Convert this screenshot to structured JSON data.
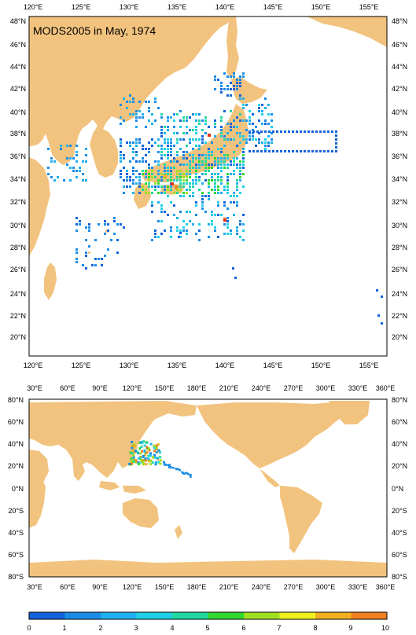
{
  "top_map": {
    "title": "MODS2005 in May, 1974",
    "lon_labels": [
      "120°E",
      "125°E",
      "130°E",
      "135°E",
      "140°E",
      "145°E",
      "150°E",
      "155°E"
    ],
    "lat_labels": [
      "20°N",
      "22°N",
      "24°N",
      "26°N",
      "28°N",
      "30°N",
      "32°N",
      "34°N",
      "36°N",
      "38°N",
      "40°N",
      "42°N",
      "44°N",
      "46°N",
      "48°N"
    ]
  },
  "bottom_map": {
    "lon_labels": [
      "30°E",
      "60°E",
      "90°E",
      "120°E",
      "150°E",
      "180°E",
      "210°E",
      "240°E",
      "270°E",
      "300°E",
      "330°E",
      "360°E"
    ],
    "lat_labels": [
      "80°S",
      "60°S",
      "40°S",
      "20°S",
      "0°N",
      "20°N",
      "40°N",
      "60°N",
      "80°N"
    ]
  },
  "colorbar": {
    "tick_labels": [
      "0",
      "1",
      "2",
      "3",
      "4",
      "5",
      "6",
      "7",
      "8",
      "9",
      "10"
    ],
    "colors": [
      "#1463dc",
      "#1a8ce6",
      "#20b0ee",
      "#20d0e4",
      "#20d8a0",
      "#30d830",
      "#a0e020",
      "#f0f020",
      "#f0b020",
      "#f08020",
      "#e83010"
    ]
  },
  "colors": {
    "land": "#f2c37e",
    "ocean": "#ffffff",
    "frame": "#000000"
  }
}
